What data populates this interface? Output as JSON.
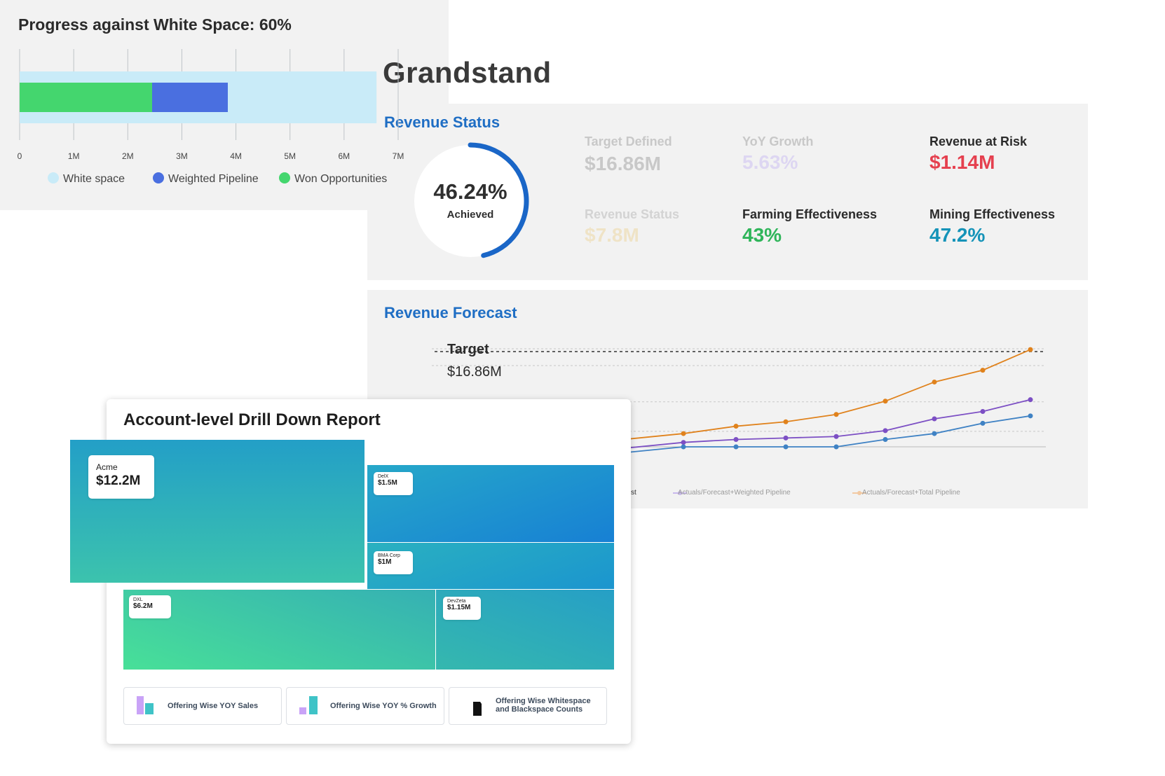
{
  "app": {
    "title": "Grandstand"
  },
  "revenue_status": {
    "title": "Revenue Status",
    "donut": {
      "value": "46.24%",
      "label": "Achieved",
      "fraction": 0.4624,
      "color": "#1a66c7"
    },
    "metrics": [
      {
        "label": "Target Defined",
        "value": "$16.86M",
        "value_color": "#c8c8c8",
        "label_color": "#c8c8c8"
      },
      {
        "label": "YoY Growth",
        "value": "5.63%",
        "value_color": "#ddd6f2",
        "label_color": "#c8c8c8"
      },
      {
        "label": "Revenue at Risk",
        "value": "$1.14M",
        "value_color": "#e5404f",
        "label_color": "#2b2b2b"
      },
      {
        "label": "Revenue Status",
        "value": "$7.8M",
        "value_color": "#efe3c6",
        "label_color": "#d3d3d3"
      },
      {
        "label": "Farming Effectiveness",
        "value": "43%",
        "value_color": "#2fb55a",
        "label_color": "#2b2b2b"
      },
      {
        "label": "Mining Effectiveness",
        "value": "47.2%",
        "value_color": "#1593b8",
        "label_color": "#2b2b2b"
      }
    ]
  },
  "revenue_forecast": {
    "title": "Revenue Forecast",
    "target_label": "Target",
    "target_value": "$16.86M",
    "legend": [
      "orecast",
      "Actuals/Forecast+Weighted Pipeline",
      "Actuals/Forecast+Total Pipeline"
    ]
  },
  "chart_data": [
    {
      "type": "line",
      "title": "Revenue Forecast",
      "series": [
        {
          "name": "Actuals/Forecast+Total Pipeline",
          "color": "#e0821c",
          "values": [
            11.2,
            11.7,
            12.0,
            12.5,
            13.4,
            14.7,
            15.5,
            16.9
          ]
        },
        {
          "name": "Actuals/Forecast+Weighted Pipeline",
          "color": "#7c4fc4",
          "values": [
            10.6,
            10.8,
            10.9,
            11.0,
            11.4,
            12.2,
            12.7,
            13.5
          ]
        },
        {
          "name": "Forecast",
          "color": "#3f82c4",
          "values": [
            10.3,
            10.3,
            10.3,
            10.3,
            10.8,
            11.2,
            11.9,
            12.4
          ]
        }
      ],
      "target": 16.86
    },
    {
      "type": "bar",
      "title": "Progress against White Space: 60%",
      "x_ticks": [
        "0",
        "1M",
        "2M",
        "3M",
        "4M",
        "5M",
        "6M",
        "7M"
      ],
      "xlim": [
        0,
        7
      ],
      "series": [
        {
          "name": "White space",
          "color": "#c9ebf8",
          "value": 6.6
        },
        {
          "name": "Weighted Pipeline",
          "color": "#4a6fe0",
          "value": 3.85
        },
        {
          "name": "Won Opportunities",
          "color": "#44d66e",
          "value": 2.45
        }
      ]
    }
  ],
  "drill_down": {
    "title": "Account-level Drill Down Report",
    "tiles": [
      {
        "name": "Acme",
        "value": "$12.2M"
      },
      {
        "name": "DelX",
        "value": "$1.5M"
      },
      {
        "name": "BMA Corp",
        "value": "$1M"
      },
      {
        "name": "DXL",
        "value": "$6.2M"
      },
      {
        "name": "DevZeta",
        "value": "$1.15M"
      }
    ],
    "reports": [
      "Offering Wise YOY Sales",
      "Offering Wise YOY % Growth",
      "Offering Wise Whitespace and Blackspace Counts"
    ]
  },
  "white_space": {
    "title": "Progress against White Space: 60%",
    "ticks": [
      "0",
      "1M",
      "2M",
      "3M",
      "4M",
      "5M",
      "6M",
      "7M"
    ],
    "legend": [
      {
        "label": "White space",
        "color": "#c9ebf8"
      },
      {
        "label": "Weighted Pipeline",
        "color": "#4a6fe0"
      },
      {
        "label": "Won Opportunities",
        "color": "#44d66e"
      }
    ]
  }
}
